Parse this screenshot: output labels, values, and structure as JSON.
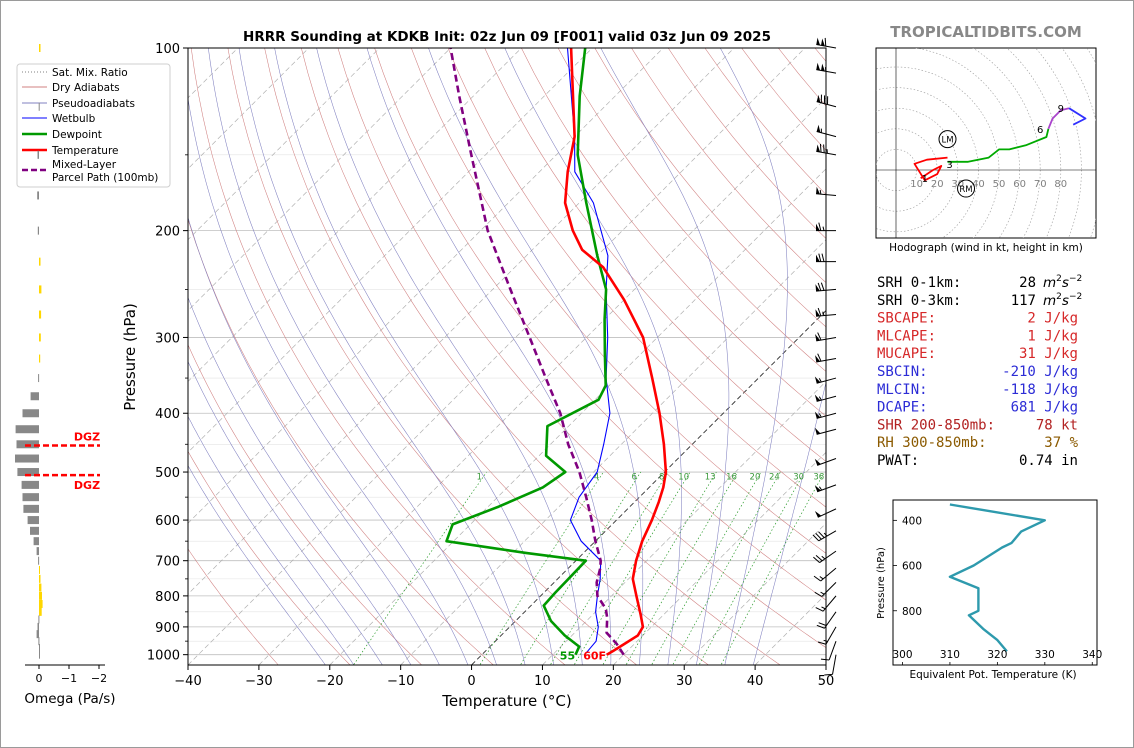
{
  "chart_data": [
    {
      "type": "line",
      "title": "HRRR Sounding at KDKB Init: 02z Jun 09 [F001] valid 03z Jun 09 2025",
      "xlabel": "Temperature (°C)",
      "ylabel": "Pressure (hPa)",
      "xlim": [
        -40,
        50
      ],
      "ylim": [
        1040,
        100
      ],
      "y_scale": "log",
      "skew_deg": 45,
      "x_ticks": [
        -40,
        -30,
        -20,
        -10,
        0,
        10,
        20,
        30,
        40,
        50
      ],
      "y_ticks": [
        100,
        200,
        300,
        400,
        500,
        600,
        700,
        800,
        900,
        1000
      ],
      "legend_position": "top-left",
      "legend": [
        {
          "label": "Sat. Mix. Ratio",
          "color": "#808080",
          "style": "dotted"
        },
        {
          "label": "Dry Adiabats",
          "color": "#d08080",
          "style": "solid"
        },
        {
          "label": "Pseudoadiabats",
          "color": "#8080c0",
          "style": "solid"
        },
        {
          "label": "Wetbulb",
          "color": "#0000ff",
          "style": "solid"
        },
        {
          "label": "Dewpoint",
          "color": "#009900",
          "style": "solid"
        },
        {
          "label": "Temperature",
          "color": "#ff0000",
          "style": "solid"
        },
        {
          "label": "Mixed-Layer\nParcel Path (100mb)",
          "color": "#800080",
          "style": "dashed"
        }
      ],
      "mixing_ratio_labels": [
        "1",
        "4",
        "6",
        "8",
        "10",
        "13",
        "16",
        "20",
        "24",
        "30",
        "36"
      ],
      "surface_labels": {
        "dewpoint": "55",
        "temperature": "60F"
      },
      "series": [
        {
          "name": "Temperature",
          "color": "#ff0000",
          "points": [
            [
              1000,
              17.6
            ],
            [
              985,
              18.0
            ],
            [
              960,
              18.6
            ],
            [
              930,
              19.3
            ],
            [
              900,
              18.8
            ],
            [
              860,
              16.8
            ],
            [
              800,
              13.5
            ],
            [
              750,
              10.6
            ],
            [
              700,
              8.5
            ],
            [
              650,
              6.6
            ],
            [
              600,
              5.0
            ],
            [
              560,
              3.4
            ],
            [
              530,
              2.0
            ],
            [
              500,
              0.2
            ],
            [
              450,
              -4.0
            ],
            [
              400,
              -9.0
            ],
            [
              350,
              -15.0
            ],
            [
              300,
              -22.0
            ],
            [
              260,
              -30.0
            ],
            [
              230,
              -37.5
            ],
            [
              215,
              -43.0
            ],
            [
              200,
              -47.0
            ],
            [
              180,
              -52.0
            ],
            [
              160,
              -56.0
            ],
            [
              140,
              -60.0
            ],
            [
              100,
              -73.0
            ]
          ]
        },
        {
          "name": "Dewpoint",
          "color": "#009900",
          "points": [
            [
              1000,
              13.2
            ],
            [
              970,
              12.6
            ],
            [
              930,
              9.0
            ],
            [
              880,
              5.0
            ],
            [
              830,
              1.8
            ],
            [
              790,
              1.6
            ],
            [
              740,
              1.5
            ],
            [
              700,
              1.4
            ],
            [
              680,
              -8.0
            ],
            [
              650,
              -21.0
            ],
            [
              610,
              -22.5
            ],
            [
              570,
              -18.5
            ],
            [
              530,
              -15.0
            ],
            [
              500,
              -14.0
            ],
            [
              470,
              -19.0
            ],
            [
              420,
              -23.0
            ],
            [
              380,
              -19.5
            ],
            [
              360,
              -20.5
            ],
            [
              320,
              -25.0
            ],
            [
              280,
              -30.0
            ],
            [
              250,
              -34.0
            ],
            [
              220,
              -40.0
            ],
            [
              180,
              -49.0
            ],
            [
              150,
              -57.0
            ],
            [
              120,
              -65.0
            ],
            [
              100,
              -71.0
            ]
          ]
        },
        {
          "name": "Wetbulb",
          "color": "#0000ff",
          "points": [
            [
              1000,
              14.5
            ],
            [
              950,
              14.2
            ],
            [
              900,
              12.5
            ],
            [
              850,
              10.0
            ],
            [
              800,
              8.0
            ],
            [
              750,
              6.0
            ],
            [
              700,
              3.5
            ],
            [
              650,
              -2.0
            ],
            [
              600,
              -6.5
            ],
            [
              550,
              -8.5
            ],
            [
              500,
              -9.5
            ],
            [
              450,
              -12.5
            ],
            [
              400,
              -16.0
            ],
            [
              350,
              -21.5
            ],
            [
              300,
              -27.0
            ],
            [
              250,
              -34.0
            ],
            [
              220,
              -38.5
            ],
            [
              180,
              -48.0
            ],
            [
              160,
              -55.0
            ],
            [
              140,
              -60.0
            ],
            [
              100,
              -73.5
            ]
          ]
        },
        {
          "name": "Mixed-Layer Parcel Path (100mb)",
          "color": "#800080",
          "points": [
            [
              1000,
              20.0
            ],
            [
              960,
              17.5
            ],
            [
              920,
              14.5
            ],
            [
              870,
              12.5
            ],
            [
              840,
              11.0
            ],
            [
              800,
              8.0
            ],
            [
              760,
              6.0
            ],
            [
              720,
              4.5
            ],
            [
              700,
              3.5
            ],
            [
              650,
              0.0
            ],
            [
              600,
              -3.5
            ],
            [
              550,
              -7.5
            ],
            [
              500,
              -12.0
            ],
            [
              450,
              -17.5
            ],
            [
              400,
              -23.0
            ],
            [
              350,
              -30.0
            ],
            [
              300,
              -38.0
            ],
            [
              250,
              -47.5
            ],
            [
              200,
              -59.0
            ],
            [
              150,
              -72.0
            ],
            [
              120,
              -82.0
            ],
            [
              100,
              -90.0
            ]
          ]
        }
      ],
      "dgz_levels_hpa": [
        452,
        506
      ],
      "dgz_label": "DGZ"
    },
    {
      "type": "bar",
      "xlabel": "Omega (Pa/s)",
      "xlim": [
        0.8,
        -2
      ],
      "x_ticks": [
        "0",
        "−1",
        "−2"
      ],
      "bars": [
        {
          "p": 100,
          "v": -0.05
        },
        {
          "p": 125,
          "v": 0.01
        },
        {
          "p": 150,
          "v": 0.05
        },
        {
          "p": 175,
          "v": 0.06
        },
        {
          "p": 200,
          "v": 0.04
        },
        {
          "p": 225,
          "v": -0.05
        },
        {
          "p": 250,
          "v": -0.08
        },
        {
          "p": 275,
          "v": -0.07
        },
        {
          "p": 300,
          "v": -0.06
        },
        {
          "p": 325,
          "v": -0.04
        },
        {
          "p": 350,
          "v": 0.03
        },
        {
          "p": 375,
          "v": 0.28
        },
        {
          "p": 400,
          "v": 0.55
        },
        {
          "p": 425,
          "v": 0.78
        },
        {
          "p": 450,
          "v": 0.75
        },
        {
          "p": 475,
          "v": 0.8
        },
        {
          "p": 500,
          "v": 0.72
        },
        {
          "p": 525,
          "v": 0.58
        },
        {
          "p": 550,
          "v": 0.55
        },
        {
          "p": 575,
          "v": 0.52
        },
        {
          "p": 600,
          "v": 0.38
        },
        {
          "p": 625,
          "v": 0.3
        },
        {
          "p": 650,
          "v": 0.18
        },
        {
          "p": 675,
          "v": 0.08
        },
        {
          "p": 700,
          "v": 0.03
        },
        {
          "p": 725,
          "v": -0.02
        },
        {
          "p": 750,
          "v": -0.05
        },
        {
          "p": 775,
          "v": -0.08
        },
        {
          "p": 800,
          "v": -0.1
        },
        {
          "p": 825,
          "v": -0.12
        },
        {
          "p": 850,
          "v": -0.09
        },
        {
          "p": 875,
          "v": 0.02
        },
        {
          "p": 900,
          "v": 0.05
        },
        {
          "p": 925,
          "v": 0.08
        },
        {
          "p": 950,
          "v": 0.02
        },
        {
          "p": 975,
          "v": 0.0
        },
        {
          "p": 1000,
          "v": 0.0
        }
      ],
      "positive_color": "#888888",
      "negative_color": "#ffd700",
      "dgz_label": "DGZ"
    },
    {
      "type": "line",
      "xlabel": "Hodograph (wind in kt, height in km)",
      "xlim": [
        -10,
        95
      ],
      "ylim": [
        -30,
        50
      ],
      "x_tick_labels": [
        "10",
        "20",
        "30",
        "40",
        "50",
        "60",
        "70",
        "80"
      ],
      "height_labels": [
        {
          "label": "1",
          "u": 14,
          "v": -4
        },
        {
          "label": "3",
          "u": 26,
          "v": 3
        },
        {
          "label": "6",
          "u": 70,
          "v": 20
        },
        {
          "label": "9",
          "u": 80,
          "v": 30
        }
      ],
      "storm_motion": [
        {
          "label": "LM",
          "u": 25,
          "v": 15
        },
        {
          "label": "RM",
          "u": 34,
          "v": -9
        }
      ],
      "series": [
        {
          "name": "0-3 km",
          "color": "#ff0000",
          "points": [
            [
              12,
              -4
            ],
            [
              18,
              0
            ],
            [
              22,
              2
            ],
            [
              20,
              -2
            ],
            [
              14,
              -5
            ],
            [
              9,
              3
            ],
            [
              15,
              5
            ],
            [
              25,
              6
            ]
          ]
        },
        {
          "name": "3-6 km",
          "color": "#00aa00",
          "points": [
            [
              25,
              4
            ],
            [
              35,
              4
            ],
            [
              45,
              6
            ],
            [
              50,
              10
            ],
            [
              55,
              10
            ],
            [
              63,
              12
            ],
            [
              73,
              16
            ],
            [
              74,
              20
            ]
          ]
        },
        {
          "name": "6-9 km",
          "color": "#aa44cc",
          "points": [
            [
              74,
              20
            ],
            [
              76,
              25
            ],
            [
              80,
              29
            ],
            [
              84,
              30
            ]
          ]
        },
        {
          "name": "9-12 km",
          "color": "#3030ff",
          "points": [
            [
              84,
              30
            ],
            [
              92,
              25
            ],
            [
              86,
              22
            ]
          ]
        }
      ]
    },
    {
      "type": "line",
      "xlabel": "Equivalent Pot. Temperature (K)",
      "ylabel": "Pressure (hPa)",
      "xlim": [
        298,
        341
      ],
      "ylim": [
        1040,
        310
      ],
      "x_ticks": [
        300,
        310,
        320,
        330,
        340
      ],
      "y_ticks": [
        400,
        600,
        800
      ],
      "series": [
        {
          "name": "Equivalent Pot. Temperature",
          "color": "#2e9aad",
          "points": [
            [
              310,
              330
            ],
            [
              330,
              400
            ],
            [
              325,
              450
            ],
            [
              323,
              500
            ],
            [
              321,
              520
            ],
            [
              318,
              560
            ],
            [
              315,
              600
            ],
            [
              310,
              650
            ],
            [
              316,
              700
            ],
            [
              316,
              740
            ],
            [
              316,
              800
            ],
            [
              314,
              820
            ],
            [
              317,
              880
            ],
            [
              320,
              930
            ],
            [
              322,
              980
            ]
          ]
        }
      ]
    }
  ],
  "header": {
    "watermark": "TROPICALTIDBITS.COM"
  },
  "indices": [
    {
      "label": "SRH 0-1km:",
      "value": "28",
      "unit_base": "m",
      "unit_sup1": "2",
      "unit_mid": "s",
      "unit_sup2": "−2",
      "color": "#000000"
    },
    {
      "label": "SRH 0-3km:",
      "value": "117",
      "unit_base": "m",
      "unit_sup1": "2",
      "unit_mid": "s",
      "unit_sup2": "−2",
      "color": "#000000"
    },
    {
      "label": "SBCAPE:",
      "value": "2 J/kg",
      "color": "#d62728"
    },
    {
      "label": "MLCAPE:",
      "value": "1 J/kg",
      "color": "#d62728"
    },
    {
      "label": "MUCAPE:",
      "value": "31 J/kg",
      "color": "#d62728"
    },
    {
      "label": "SBCIN:",
      "value": "-210 J/kg",
      "color": "#2c2cd6"
    },
    {
      "label": "MLCIN:",
      "value": "-118 J/kg",
      "color": "#2c2cd6"
    },
    {
      "label": "DCAPE:",
      "value": "681 J/kg",
      "color": "#2c2cd6"
    },
    {
      "label": "SHR 200-850mb:",
      "value": "78 kt",
      "color": "#b22222"
    },
    {
      "label": "RH 300-850mb:",
      "value": "37 %",
      "color": "#8b5a00"
    },
    {
      "label": "PWAT:",
      "value": "0.74 in",
      "color": "#000000"
    }
  ],
  "wind_barbs_kt": [
    {
      "p": 100,
      "spd": 110,
      "dir": 280
    },
    {
      "p": 110,
      "spd": 105,
      "dir": 280
    },
    {
      "p": 125,
      "spd": 80,
      "dir": 285
    },
    {
      "p": 140,
      "spd": 55,
      "dir": 285
    },
    {
      "p": 150,
      "spd": 75,
      "dir": 280
    },
    {
      "p": 175,
      "spd": 55,
      "dir": 275
    },
    {
      "p": 200,
      "spd": 65,
      "dir": 270
    },
    {
      "p": 225,
      "spd": 70,
      "dir": 270
    },
    {
      "p": 250,
      "spd": 70,
      "dir": 265
    },
    {
      "p": 275,
      "spd": 65,
      "dir": 265
    },
    {
      "p": 300,
      "spd": 60,
      "dir": 260
    },
    {
      "p": 325,
      "spd": 60,
      "dir": 260
    },
    {
      "p": 350,
      "spd": 55,
      "dir": 255
    },
    {
      "p": 375,
      "spd": 55,
      "dir": 255
    },
    {
      "p": 400,
      "spd": 55,
      "dir": 255
    },
    {
      "p": 425,
      "spd": 50,
      "dir": 255
    },
    {
      "p": 475,
      "spd": 50,
      "dir": 250
    },
    {
      "p": 525,
      "spd": 55,
      "dir": 250
    },
    {
      "p": 575,
      "spd": 50,
      "dir": 245
    },
    {
      "p": 625,
      "spd": 35,
      "dir": 240
    },
    {
      "p": 675,
      "spd": 25,
      "dir": 235
    },
    {
      "p": 720,
      "spd": 15,
      "dir": 230
    },
    {
      "p": 760,
      "spd": 15,
      "dir": 225
    },
    {
      "p": 800,
      "spd": 15,
      "dir": 220
    },
    {
      "p": 850,
      "spd": 20,
      "dir": 215
    },
    {
      "p": 900,
      "spd": 15,
      "dir": 210
    },
    {
      "p": 950,
      "spd": 10,
      "dir": 200
    },
    {
      "p": 1000,
      "spd": 10,
      "dir": 190
    }
  ]
}
